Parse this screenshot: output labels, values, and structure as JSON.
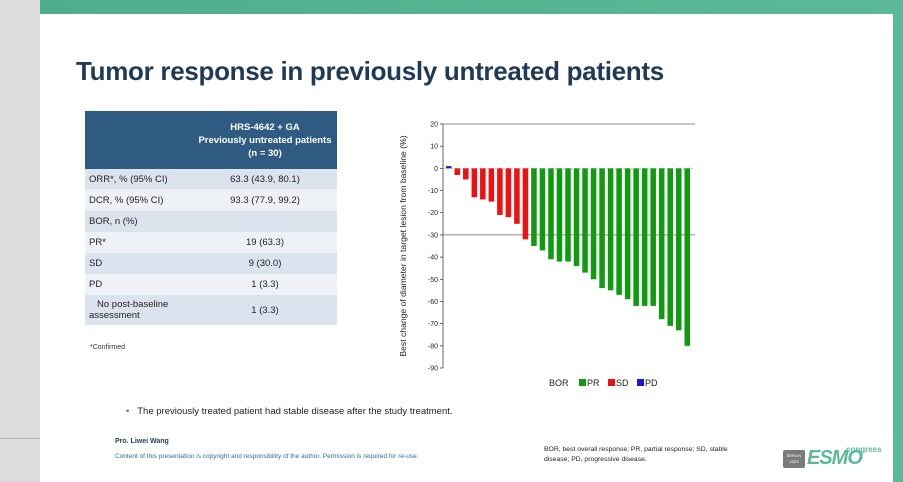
{
  "title": "Tumor response in previously untreated patients",
  "table": {
    "header": [
      "HRS-4642 + GA",
      "Previously untreated patients",
      "(n = 30)"
    ],
    "rows": [
      {
        "label": "ORR*, % (95% CI)",
        "value": "63.3 (43.9, 80.1)"
      },
      {
        "label": "DCR, % (95% CI)",
        "value": "93.3 (77.9, 99.2)"
      },
      {
        "label": "BOR, n (%)",
        "value": ""
      },
      {
        "label": "PR*",
        "value": "19 (63.3)"
      },
      {
        "label": "SD",
        "value": "9 (30.0)"
      },
      {
        "label": "PD",
        "value": "1 (3.3)"
      },
      {
        "label_line1": "No     post-baseline",
        "label_line2": "assessment",
        "value": "1 (3.3)"
      }
    ],
    "footnote": "*Confirmed"
  },
  "chart_data": {
    "type": "bar",
    "ylabel": "Best change of diameter in target lesion from baseline (%)",
    "ylim": [
      -90,
      20
    ],
    "yticks": [
      20,
      10,
      0,
      -10,
      -20,
      -30,
      -40,
      -50,
      -60,
      -70,
      -80,
      -90
    ],
    "reference_lines": [
      20,
      -30
    ],
    "values": [
      1,
      -3,
      -5,
      -13,
      -14,
      -15,
      -21,
      -22,
      -25,
      -32,
      -35,
      -37,
      -41,
      -42,
      -42,
      -44,
      -47,
      -50,
      -54,
      -55,
      -57,
      -59,
      -62,
      -62,
      -62,
      -68,
      -71,
      -73,
      -80
    ],
    "categories": [
      "PD",
      "SD",
      "SD",
      "SD",
      "SD",
      "SD",
      "SD",
      "SD",
      "SD",
      "SD",
      "PR",
      "PR",
      "PR",
      "PR",
      "PR",
      "PR",
      "PR",
      "PR",
      "PR",
      "PR",
      "PR",
      "PR",
      "PR",
      "PR",
      "PR",
      "PR",
      "PR",
      "PR",
      "PR"
    ],
    "legend_title": "BOR",
    "legend": [
      {
        "name": "PR",
        "color": "#109a10"
      },
      {
        "name": "SD",
        "color": "#ee1111"
      },
      {
        "name": "PD",
        "color": "#1a1ad0"
      }
    ]
  },
  "bullet": "The previously treated patient had stable disease after the study treatment.",
  "presenter": "Pro. Liwei Wang",
  "copyright": "Content of this presentation is copyright and responsibility of the author. Permission is required for re-use.",
  "abbreviations": "BOR, best overall response; PR, partial response; SD, stable disease; PD, progressive disease.",
  "logo": {
    "box_text": "BERLIN 2023",
    "brand": "ESMO",
    "suffix": "congress"
  }
}
